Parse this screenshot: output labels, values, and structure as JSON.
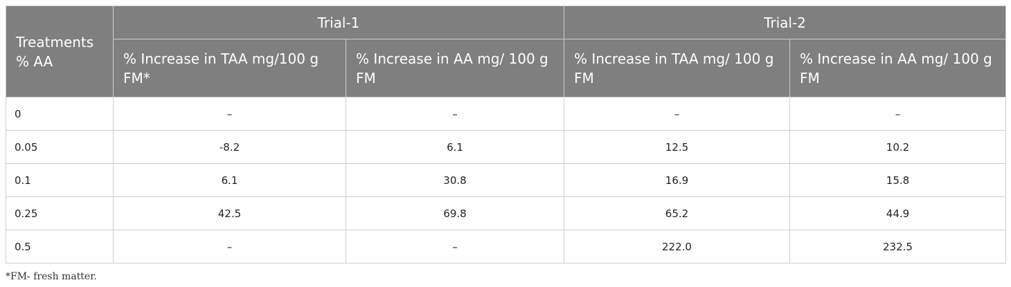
{
  "table": {
    "header": {
      "first": "Treatments % AA",
      "groups": [
        "Trial-1",
        "Trial-2"
      ],
      "columns": [
        "% Increase in TAA mg/100 g FM*",
        "% Increase in AA mg/ 100 g FM",
        "% Increase in TAA mg/ 100 g FM",
        "% Increase in AA mg/ 100 g FM"
      ]
    },
    "rows": [
      [
        "0",
        "–",
        "–",
        "–",
        "–"
      ],
      [
        "0.05",
        "-8.2",
        "6.1",
        "12.5",
        "10.2"
      ],
      [
        "0.1",
        "6.1",
        "30.8",
        "16.9",
        "15.8"
      ],
      [
        "0.25",
        "42.5",
        "69.8",
        "65.2",
        "44.9"
      ],
      [
        "0.5",
        "–",
        "–",
        "222.0",
        "232.5"
      ]
    ]
  },
  "footnote": "*FM- fresh matter."
}
